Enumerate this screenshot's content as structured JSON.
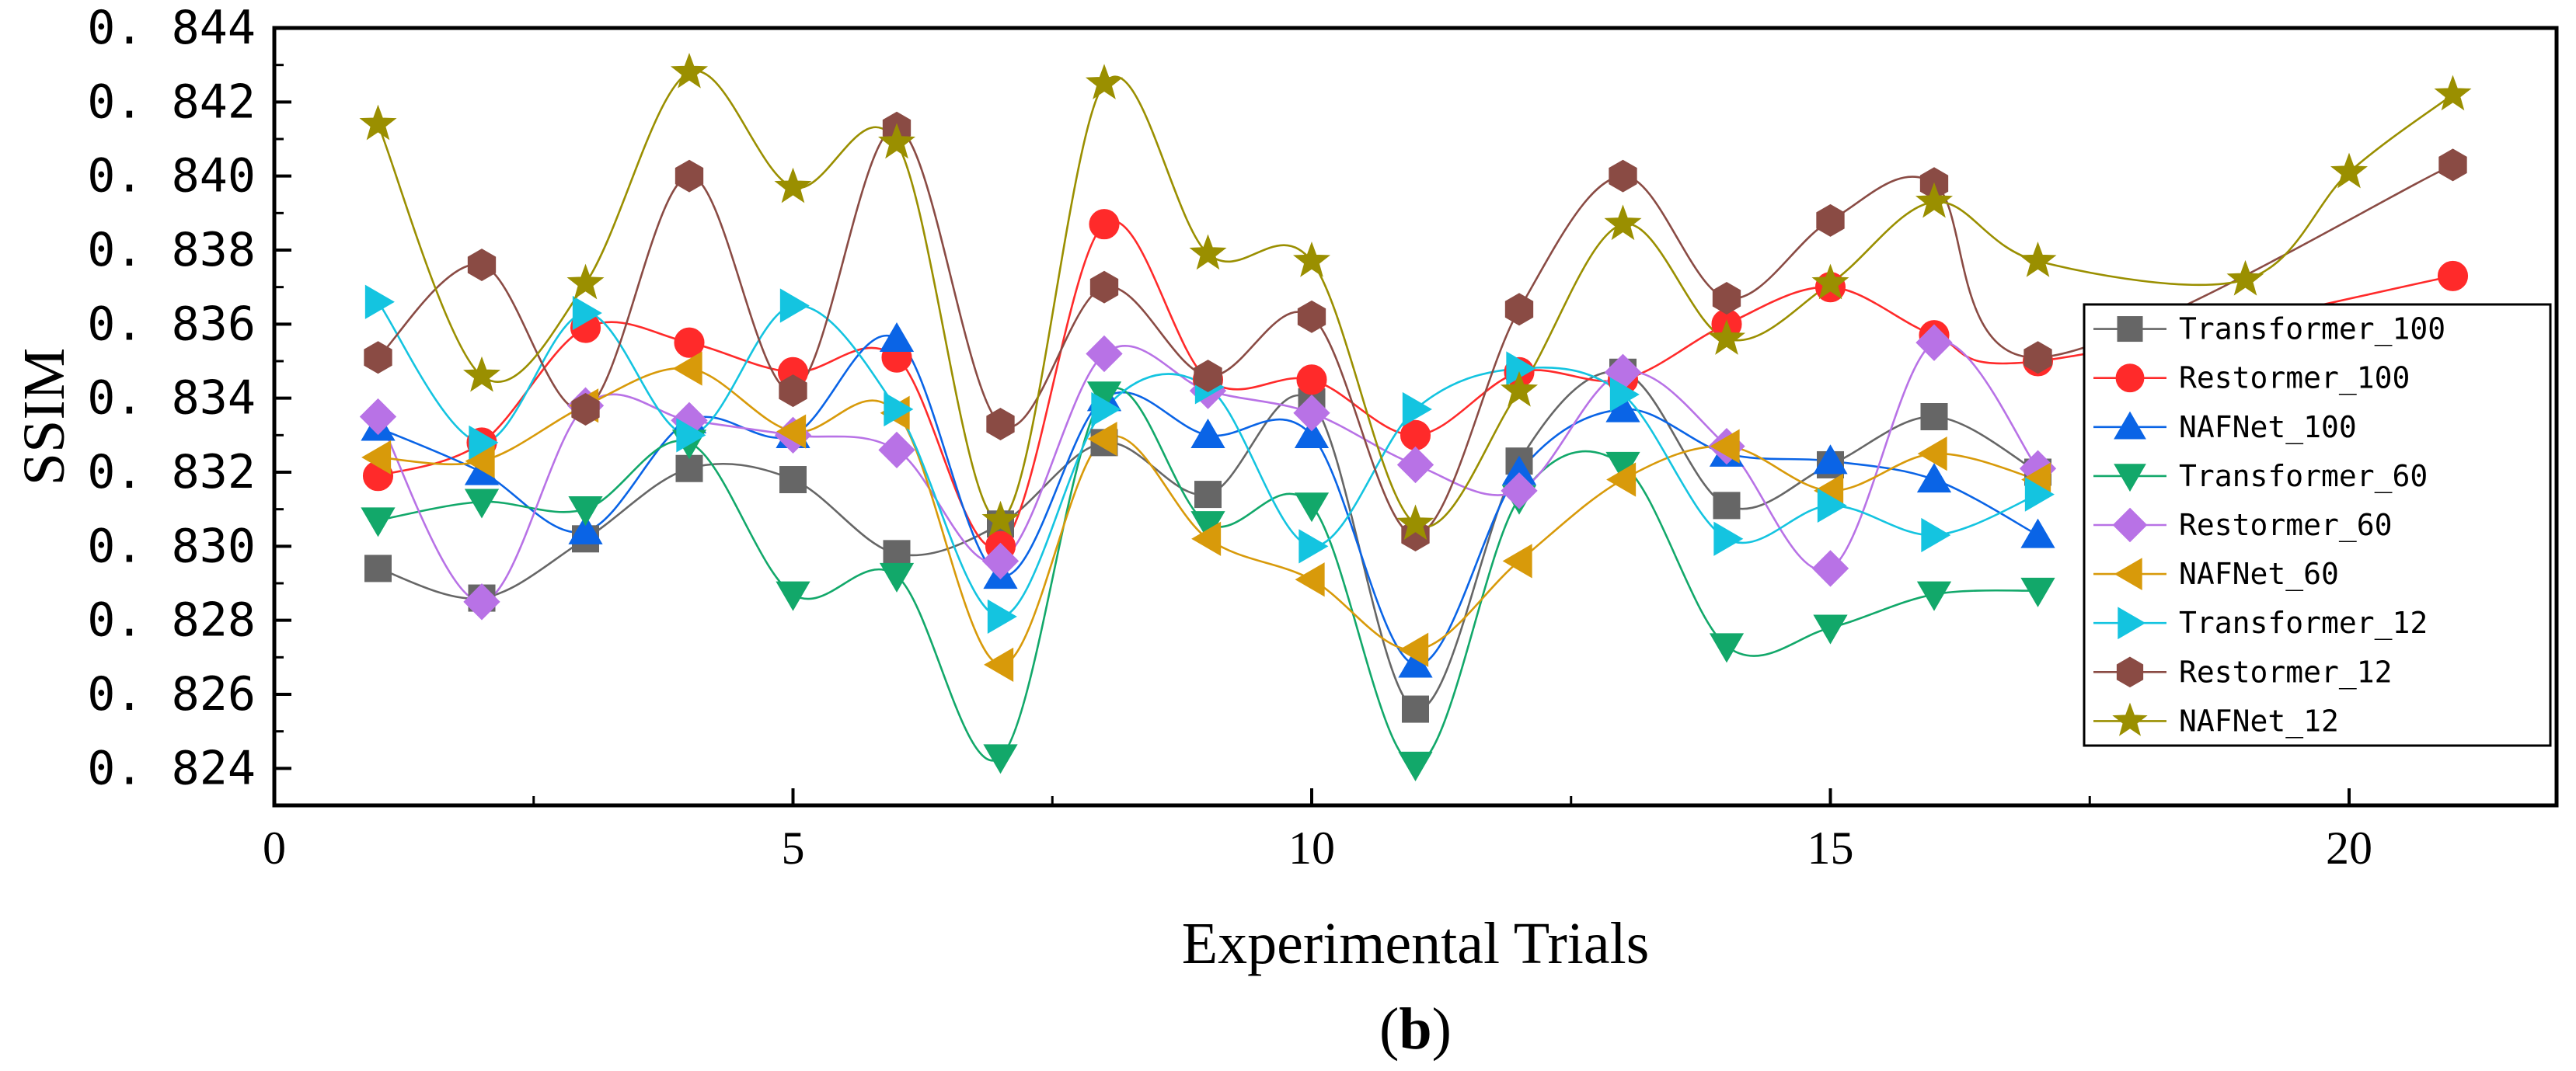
{
  "chart_data": {
    "type": "line",
    "xlabel": "Experimental Trials",
    "ylabel": "SSIM",
    "xlim": [
      0,
      22
    ],
    "ylim": [
      0.823,
      0.844
    ],
    "xticks": [
      "0",
      "5",
      "10",
      "15",
      "20"
    ],
    "yticks": [
      "0.824",
      "0.826",
      "0.828",
      "0.830",
      "0.832",
      "0.834",
      "0.836",
      "0.838",
      "0.840",
      "0.842",
      "0.844"
    ],
    "grid": false,
    "legend_position": "right",
    "sublabel": "(b)",
    "series": [
      {
        "name": "Transformer_100",
        "color": "#666666",
        "marker": "square",
        "x": [
          1,
          2,
          3,
          4,
          5,
          6,
          7,
          8,
          9,
          10,
          11,
          12,
          13,
          14,
          15,
          16,
          17
        ],
        "values": [
          0.8294,
          0.8286,
          0.8302,
          0.8321,
          0.8318,
          0.8298,
          0.8306,
          0.8328,
          0.8314,
          0.8339,
          0.8256,
          0.8323,
          0.8347,
          0.8311,
          0.8322,
          0.8335,
          0.832
        ]
      },
      {
        "name": "Restormer_100",
        "color": "#ff2a2a",
        "marker": "circle",
        "x": [
          1,
          2,
          3,
          4,
          5,
          6,
          7,
          8,
          9,
          10,
          11,
          12,
          13,
          14,
          15,
          16,
          17,
          21
        ],
        "values": [
          0.8319,
          0.8328,
          0.8359,
          0.8355,
          0.8347,
          0.8351,
          0.83,
          0.8387,
          0.8345,
          0.8345,
          0.833,
          0.8347,
          0.8345,
          0.836,
          0.837,
          0.8357,
          0.835,
          0.8373
        ]
      },
      {
        "name": "NAFNet_100",
        "color": "#0a64e6",
        "marker": "triangle-up",
        "x": [
          1,
          2,
          3,
          4,
          5,
          6,
          7,
          8,
          9,
          10,
          11,
          12,
          13,
          14,
          15,
          16,
          17
        ],
        "values": [
          0.8332,
          0.832,
          0.8304,
          0.8334,
          0.833,
          0.8356,
          0.8292,
          0.834,
          0.833,
          0.833,
          0.8268,
          0.832,
          0.8337,
          0.8325,
          0.8323,
          0.8318,
          0.8303
        ]
      },
      {
        "name": "Transformer_60",
        "color": "#12a86a",
        "marker": "triangle-down",
        "x": [
          1,
          2,
          3,
          4,
          5,
          6,
          7,
          8,
          9,
          10,
          11,
          12,
          13,
          14,
          15,
          16,
          17
        ],
        "values": [
          0.8307,
          0.8312,
          0.831,
          0.8328,
          0.8287,
          0.8292,
          0.8243,
          0.8341,
          0.8306,
          0.8311,
          0.8241,
          0.8313,
          0.8322,
          0.8273,
          0.8278,
          0.8287,
          0.8288
        ]
      },
      {
        "name": "Restormer_60",
        "color": "#b872e6",
        "marker": "diamond",
        "x": [
          1,
          2,
          3,
          4,
          5,
          6,
          7,
          8,
          9,
          10,
          11,
          12,
          13,
          14,
          15,
          16,
          17
        ],
        "values": [
          0.8335,
          0.8285,
          0.8338,
          0.8334,
          0.833,
          0.8326,
          0.8296,
          0.8352,
          0.8342,
          0.8336,
          0.8322,
          0.8315,
          0.8347,
          0.8327,
          0.8294,
          0.8355,
          0.8321
        ]
      },
      {
        "name": "NAFNet_60",
        "color": "#d89a0a",
        "marker": "triangle-left",
        "x": [
          1,
          2,
          3,
          4,
          5,
          6,
          7,
          8,
          9,
          10,
          11,
          12,
          13,
          14,
          15,
          16,
          17
        ],
        "values": [
          0.8324,
          0.8323,
          0.8338,
          0.8348,
          0.8331,
          0.8336,
          0.8268,
          0.8329,
          0.8302,
          0.8291,
          0.8272,
          0.8296,
          0.8318,
          0.8327,
          0.8315,
          0.8325,
          0.8318
        ]
      },
      {
        "name": "Transformer_12",
        "color": "#14c4e0",
        "marker": "triangle-right",
        "x": [
          1,
          2,
          3,
          4,
          5,
          6,
          7,
          8,
          9,
          10,
          11,
          12,
          13,
          14,
          15,
          16,
          17
        ],
        "values": [
          0.8366,
          0.8328,
          0.8363,
          0.833,
          0.8365,
          0.8337,
          0.8281,
          0.8337,
          0.8343,
          0.83,
          0.8337,
          0.8348,
          0.8341,
          0.8302,
          0.8311,
          0.8303,
          0.8314
        ]
      },
      {
        "name": "Restormer_12",
        "color": "#8a4b44",
        "marker": "hexagon",
        "x": [
          1,
          2,
          3,
          4,
          5,
          6,
          7,
          8,
          9,
          10,
          11,
          12,
          13,
          14,
          15,
          16,
          17,
          21
        ],
        "values": [
          0.8351,
          0.8376,
          0.8337,
          0.84,
          0.8342,
          0.8413,
          0.8333,
          0.837,
          0.8346,
          0.8362,
          0.8303,
          0.8364,
          0.84,
          0.8367,
          0.8388,
          0.8398,
          0.8351,
          0.8403
        ]
      },
      {
        "name": "NAFNet_12",
        "color": "#9a8f00",
        "marker": "star",
        "x": [
          1,
          2,
          3,
          4,
          5,
          6,
          7,
          8,
          9,
          10,
          11,
          12,
          13,
          14,
          15,
          16,
          17,
          19,
          20,
          21
        ],
        "values": [
          0.8414,
          0.8346,
          0.8371,
          0.8428,
          0.8397,
          0.8409,
          0.8307,
          0.8425,
          0.8379,
          0.8377,
          0.8306,
          0.8342,
          0.8387,
          0.8356,
          0.8371,
          0.8393,
          0.8377,
          0.8372,
          0.8401,
          0.8422
        ]
      }
    ]
  }
}
